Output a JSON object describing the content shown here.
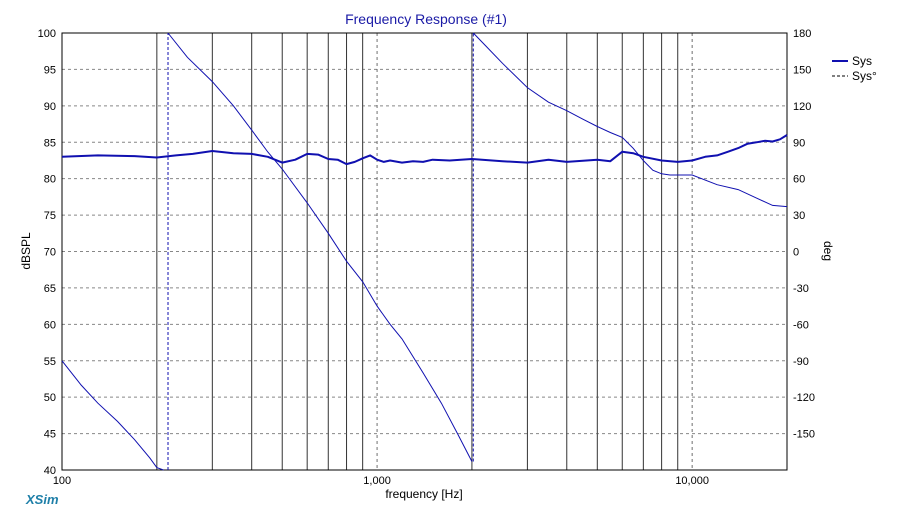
{
  "chart_data": {
    "type": "line",
    "title": "Frequency Response (#1)",
    "xlabel": "frequency [Hz]",
    "ylabel": "dBSPL",
    "y2label": "deg",
    "xscale": "log",
    "xlim": [
      100,
      20000
    ],
    "ylim": [
      40,
      100
    ],
    "y2lim": [
      -180,
      180
    ],
    "grid": true,
    "legend_position": "top-right",
    "x_ticks": [
      {
        "value": 100,
        "label": "100"
      },
      {
        "value": 1000,
        "label": "1,000"
      },
      {
        "value": 10000,
        "label": "10,000"
      }
    ],
    "y_ticks": [
      "40",
      "45",
      "50",
      "55",
      "60",
      "65",
      "70",
      "75",
      "80",
      "85",
      "90",
      "95",
      "100"
    ],
    "y2_ticks": [
      "-150",
      "-120",
      "-90",
      "-60",
      "-30",
      "0",
      "30",
      "60",
      "90",
      "120",
      "150",
      "180"
    ],
    "series": [
      {
        "name": "Sys",
        "axis": "left",
        "style": "solid",
        "color": "#1010b0",
        "x": [
          100,
          130,
          170,
          200,
          230,
          260,
          300,
          350,
          400,
          450,
          500,
          550,
          600,
          650,
          700,
          750,
          800,
          850,
          900,
          950,
          1000,
          1050,
          1100,
          1200,
          1300,
          1400,
          1500,
          1700,
          2000,
          2500,
          3000,
          3500,
          4000,
          5000,
          5500,
          6000,
          6500,
          7000,
          8000,
          9000,
          10000,
          11000,
          12000,
          13000,
          14000,
          15000,
          16000,
          17000,
          18000,
          19000,
          20000
        ],
        "values": [
          83.0,
          83.2,
          83.1,
          82.9,
          83.2,
          83.4,
          83.8,
          83.5,
          83.4,
          83.0,
          82.2,
          82.6,
          83.4,
          83.3,
          82.7,
          82.6,
          82.0,
          82.3,
          82.8,
          83.2,
          82.6,
          82.3,
          82.5,
          82.2,
          82.4,
          82.3,
          82.6,
          82.5,
          82.7,
          82.4,
          82.2,
          82.6,
          82.3,
          82.6,
          82.4,
          83.7,
          83.5,
          83.0,
          82.5,
          82.3,
          82.5,
          83.0,
          83.2,
          83.7,
          84.2,
          84.8,
          85.0,
          85.2,
          85.1,
          85.4,
          86.0
        ]
      },
      {
        "name": "Sys°",
        "axis": "right",
        "style": "dashed",
        "color": "#1010b0",
        "segments": [
          {
            "x": [
              100,
              115,
              130,
              150,
              170,
              190,
              200,
              210
            ],
            "values": [
              -90,
              -110,
              -125,
              -140,
              -155,
              -170,
              -178,
              -180
            ]
          },
          {
            "x": [
              217,
              250,
              300,
              350,
              400,
              450,
              500,
              600,
              700,
              800,
              900,
              1000,
              1100,
              1200,
              1400,
              1600,
              1800,
              2000
            ],
            "values": [
              180,
              160,
              140,
              120,
              100,
              82,
              68,
              40,
              15,
              -8,
              -25,
              -45,
              -60,
              -72,
              -100,
              -125,
              -150,
              -173
            ]
          },
          {
            "x": [
              2020,
              2200,
              2500,
              3000,
              3500,
              4000,
              4500,
              5000,
              5500,
              6000,
              6500,
              7000,
              7500,
              8000,
              8500,
              9000,
              10000,
              12000,
              14000,
              16000,
              18000,
              20000
            ],
            "values": [
              180,
              170,
              155,
              135,
              123,
              116,
              109,
              103,
              98,
              94,
              85,
              75,
              67,
              64,
              63,
              63,
              63,
              55,
              51,
              44,
              38,
              37
            ]
          }
        ]
      }
    ]
  }
}
